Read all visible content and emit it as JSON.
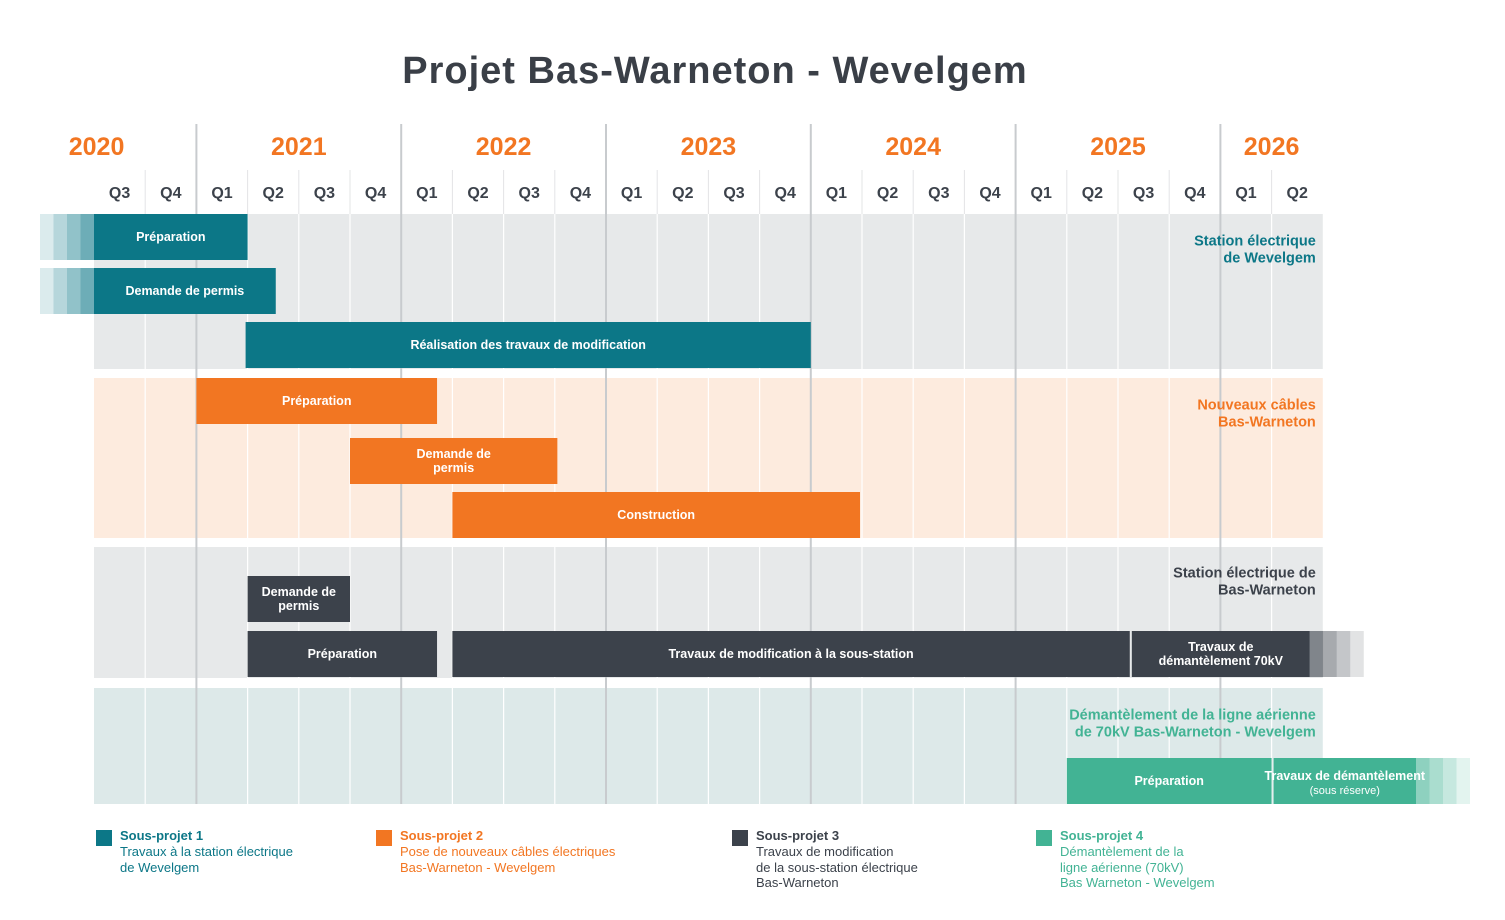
{
  "title": "Projet Bas-Warneton - Wevelgem",
  "colors": {
    "sp1": "#0c7787",
    "sp2": "#f27622",
    "sp3": "#3c424b",
    "sp4": "#42b394",
    "bg1": "#e7e9ea",
    "bg2": "#fdebde",
    "bg3": "#e7e9ea",
    "bg4": "#dde9e9",
    "year": "#f27622",
    "quarter": "#3c424b"
  },
  "chart_data": {
    "type": "gantt",
    "title": "Projet Bas-Warneton - Wevelgem",
    "years": [
      "2020",
      "2021",
      "2022",
      "2023",
      "2024",
      "2025",
      "2026"
    ],
    "quarters": [
      "Q3",
      "Q4",
      "Q1",
      "Q2",
      "Q3",
      "Q4",
      "Q1",
      "Q2",
      "Q3",
      "Q4",
      "Q1",
      "Q2",
      "Q3",
      "Q4",
      "Q1",
      "Q2",
      "Q3",
      "Q4",
      "Q1",
      "Q2",
      "Q3",
      "Q4",
      "Q1",
      "Q2"
    ],
    "time_range": [
      "2020-Q3",
      "2026-Q2"
    ],
    "groups": [
      {
        "label": "Station électrique\nde Wevelgem",
        "color_key": "sp1",
        "tasks": [
          {
            "label": "Préparation",
            "start": "2020-Q3",
            "end": "2021-Q1",
            "starts_before_range": true
          },
          {
            "label": "Demande de permis",
            "start": "2020-Q3",
            "end": "2021-Q2",
            "starts_before_range": true
          },
          {
            "label": "Réalisation des travaux de modification",
            "start": "2021-Q2",
            "end": "2023-Q4"
          }
        ]
      },
      {
        "label": "Nouveaux câbles\nBas-Warneton",
        "color_key": "sp2",
        "tasks": [
          {
            "label": "Préparation",
            "start": "2021-Q1",
            "end": "2022-Q1"
          },
          {
            "label": "Demande de\npermis",
            "start": "2021-Q4",
            "end": "2022-Q3"
          },
          {
            "label": "Construction",
            "start": "2022-Q2",
            "end": "2024-Q1"
          }
        ]
      },
      {
        "label": "Station électrique de\nBas-Warneton",
        "color_key": "sp3",
        "tasks": [
          {
            "label": "Demande de\npermis",
            "start": "2021-Q2",
            "end": "2021-Q3"
          },
          {
            "label": "Préparation",
            "start": "2021-Q2",
            "end": "2022-Q1"
          },
          {
            "label": "Travaux de modification à la sous-station",
            "start": "2022-Q2",
            "end": "2025-Q3"
          },
          {
            "label": "Travaux de\ndémantèlement 70kV",
            "start": "2025-Q3",
            "end": "2026-Q2",
            "extends_beyond_range": true
          }
        ]
      },
      {
        "label": "Démantèlement de la ligne aérienne\nde 70kV Bas-Warneton - Wevelgem",
        "color_key": "sp4",
        "tasks": [
          {
            "label": "Préparation",
            "start": "2025-Q2",
            "end": "2026-Q1"
          },
          {
            "label": "Travaux de démantèlement",
            "note": "(sous réserve)",
            "start": "2026-Q2",
            "end": "2026-Q2",
            "extends_beyond_range": true
          }
        ]
      }
    ]
  },
  "legend": [
    {
      "title": "Sous-projet 1",
      "desc": "Travaux à la station électrique\nde Wevelgem",
      "color_key": "sp1"
    },
    {
      "title": "Sous-projet 2",
      "desc": "Pose de nouveaux câbles électriques\nBas-Warneton - Wevelgem",
      "color_key": "sp2"
    },
    {
      "title": "Sous-projet 3",
      "desc": "Travaux de modification\nde la sous-station électrique\nBas-Warneton",
      "color_key": "sp3"
    },
    {
      "title": "Sous-projet 4",
      "desc": "Démantèlement de la\nligne aérienne (70kV)\nBas Warneton - Wevelgem",
      "color_key": "sp4"
    }
  ]
}
